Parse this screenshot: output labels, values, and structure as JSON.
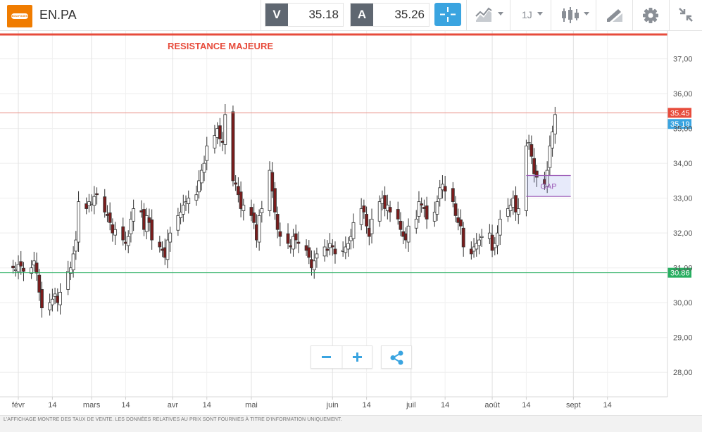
{
  "header": {
    "ticker": "EN.PA",
    "logo_text": "BOUYGUES",
    "bid_label": "V",
    "bid_value": "35.18",
    "ask_label": "A",
    "ask_value": "35.26",
    "interval_label": "1J"
  },
  "footer": {
    "disclaimer": "L'AFFICHAGE MONTRE DES TAUX DE VENTE. LES DONNÉES RELATIVES AU PRIX SONT FOURNIES À TITRE D'INFORMATION UNIQUEMENT."
  },
  "colors": {
    "up": "#ffffff",
    "down": "#7a1c1c",
    "wick": "#333333",
    "resistance": "#e74c3c",
    "support": "#27ae60",
    "current_price": "#3aa4e0",
    "gap": "#9b59b6",
    "accent": "#3aa4e0"
  },
  "chart_data": {
    "type": "candlestick",
    "ylim": [
      27.5,
      37.8
    ],
    "yticks": [
      "28,00",
      "29,00",
      "30,00",
      "31,00",
      "32,00",
      "33,00",
      "34,00",
      "35,00",
      "36,00",
      "37,00"
    ],
    "xticks": [
      {
        "label": "févr",
        "date": "2017-02-01"
      },
      {
        "label": "14",
        "date": "2017-02-14"
      },
      {
        "label": "mars",
        "date": "2017-03-01"
      },
      {
        "label": "14",
        "date": "2017-03-14"
      },
      {
        "label": "avr",
        "date": "2017-04-01"
      },
      {
        "label": "14",
        "date": "2017-04-14"
      },
      {
        "label": "mai",
        "date": "2017-05-01"
      },
      {
        "label": "juin",
        "date": "2017-06-01"
      },
      {
        "label": "14",
        "date": "2017-06-14"
      },
      {
        "label": "juil",
        "date": "2017-07-01"
      },
      {
        "label": "14",
        "date": "2017-07-14"
      },
      {
        "label": "août",
        "date": "2017-08-01"
      },
      {
        "label": "14",
        "date": "2017-08-14"
      },
      {
        "label": "sept",
        "date": "2017-09-01"
      },
      {
        "label": "14",
        "date": "2017-09-14"
      }
    ],
    "annotations": {
      "resistance_text": "RESISTANCE MAJEURE",
      "resistance_level": 37.7,
      "line_upper": 35.45,
      "line_upper_label": "35.45",
      "line_lower": 30.86,
      "line_lower_label": "30.86",
      "current_label": "35,19",
      "current_value": 35.19,
      "gap_text": "GAP",
      "gap_range": [
        33.05,
        33.65
      ],
      "gap_dates": [
        "2017-08-14",
        "2017-08-31"
      ]
    },
    "close": [
      31.0,
      30.95,
      31.1,
      31.05,
      30.9,
      31.0,
      31.2,
      30.85,
      30.3,
      29.85,
      30.0,
      30.1,
      30.25,
      30.0,
      30.3,
      30.9,
      31.0,
      31.4,
      31.8,
      32.9,
      32.7,
      32.9,
      32.85,
      33.05,
      33.1,
      32.6,
      32.5,
      32.3,
      32.0,
      32.1,
      31.8,
      31.7,
      31.9,
      32.4,
      32.7,
      32.6,
      32.1,
      32.5,
      32.3,
      31.8,
      31.6,
      31.5,
      31.3,
      31.8,
      32.0,
      32.5,
      32.6,
      32.8,
      32.9,
      33.0,
      33.1,
      33.5,
      33.8,
      34.0,
      34.5,
      34.8,
      35.0,
      34.7,
      34.6,
      35.4,
      33.5,
      33.4,
      33.1,
      32.7,
      32.8,
      32.5,
      32.3,
      31.8,
      32.5,
      32.7,
      33.8,
      33.2,
      32.6,
      32.1,
      31.9,
      31.7,
      31.6,
      31.9,
      31.8,
      31.7,
      31.5,
      31.3,
      31.0,
      31.2,
      31.4,
      31.6,
      31.5,
      31.7,
      31.6,
      31.4,
      31.5,
      31.6,
      31.7,
      31.9,
      32.3,
      32.7,
      32.6,
      32.2,
      31.9,
      32.4,
      32.9,
      33.0,
      32.7,
      32.8,
      32.6,
      32.4,
      32.1,
      31.9,
      31.8,
      32.2,
      32.4,
      32.9,
      32.8,
      32.7,
      32.4,
      32.6,
      32.9,
      33.3,
      33.4,
      33.2,
      32.9,
      32.5,
      32.3,
      32.2,
      31.6,
      31.4,
      31.6,
      31.7,
      31.8,
      31.9,
      32.0,
      31.5,
      31.7,
      32.0,
      32.4,
      32.7,
      32.8,
      33.0,
      32.6,
      32.7,
      34.5,
      34.6,
      34.2,
      33.7,
      33.6,
      33.4,
      33.8,
      34.5,
      34.9,
      35.4
    ],
    "volume_label": ""
  }
}
